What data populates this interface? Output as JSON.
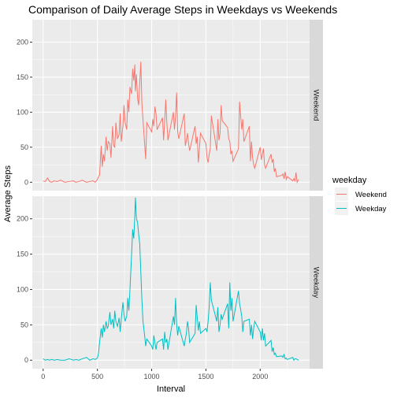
{
  "chart_data": {
    "type": "line",
    "title": "Comparison of Daily Average Steps in Weekdays vs Weekends",
    "xlabel": "Interval",
    "ylabel": "Average Steps",
    "xlim": [
      -100,
      2455
    ],
    "ylim": [
      -12,
      232
    ],
    "x_ticks": [
      0,
      500,
      1000,
      1500,
      2000
    ],
    "x_tick_labels": [
      "0",
      "500",
      "1000",
      "1500",
      "2000"
    ],
    "y_ticks": [
      0,
      50,
      100,
      150,
      200
    ],
    "y_tick_labels": [
      "0",
      "50",
      "100",
      "150",
      "200"
    ],
    "grid": true,
    "legend": {
      "title": "weekday",
      "placement": "right",
      "entries": [
        "Weekend",
        "Weekday"
      ]
    },
    "facets": [
      "Weekend",
      "Weekday"
    ],
    "series": [
      {
        "name": "Weekend",
        "color": "#F8766D",
        "x": [
          0,
          20,
          40,
          60,
          80,
          100,
          130,
          160,
          200,
          240,
          280,
          300,
          330,
          360,
          400,
          430,
          460,
          480,
          500,
          510,
          520,
          535,
          545,
          555,
          565,
          580,
          590,
          600,
          615,
          625,
          640,
          650,
          660,
          670,
          685,
          700,
          710,
          720,
          735,
          745,
          755,
          770,
          780,
          790,
          800,
          815,
          825,
          835,
          845,
          850,
          860,
          870,
          880,
          890,
          900,
          910,
          920,
          935,
          945,
          955,
          1000,
          1010,
          1020,
          1030,
          1040,
          1050,
          1100,
          1110,
          1120,
          1130,
          1140,
          1150,
          1200,
          1210,
          1220,
          1230,
          1240,
          1250,
          1300,
          1310,
          1320,
          1330,
          1340,
          1350,
          1400,
          1410,
          1420,
          1430,
          1440,
          1450,
          1500,
          1510,
          1520,
          1530,
          1540,
          1550,
          1600,
          1610,
          1620,
          1630,
          1640,
          1650,
          1700,
          1710,
          1720,
          1730,
          1740,
          1750,
          1800,
          1810,
          1820,
          1830,
          1840,
          1850,
          1900,
          1910,
          1920,
          1930,
          1940,
          1950,
          2000,
          2010,
          2020,
          2030,
          2040,
          2050,
          2100,
          2110,
          2120,
          2130,
          2140,
          2150,
          2200,
          2210,
          2220,
          2230,
          2240,
          2250,
          2300,
          2310,
          2320,
          2330,
          2340,
          2355
        ],
        "y": [
          2,
          1,
          6,
          1,
          0,
          2,
          1,
          3,
          0,
          1,
          2,
          0,
          1,
          3,
          0,
          1,
          2,
          0,
          4,
          8,
          10,
          52,
          22,
          40,
          30,
          65,
          45,
          58,
          55,
          35,
          80,
          52,
          50,
          85,
          62,
          68,
          98,
          58,
          80,
          110,
          86,
          75,
          118,
          100,
          136,
          126,
          162,
          145,
          168,
          130,
          154,
          120,
          110,
          142,
          172,
          112,
          90,
          55,
          33,
          85,
          72,
          90,
          80,
          108,
          98,
          75,
          92,
          60,
          88,
          118,
          85,
          60,
          100,
          75,
          94,
          128,
          72,
          62,
          98,
          52,
          60,
          70,
          55,
          45,
          80,
          55,
          65,
          28,
          48,
          70,
          55,
          35,
          28,
          40,
          48,
          95,
          45,
          90,
          60,
          70,
          110,
          88,
          78,
          62,
          58,
          40,
          45,
          30,
          48,
          115,
          95,
          75,
          90,
          58,
          80,
          30,
          58,
          35,
          25,
          20,
          50,
          32,
          40,
          48,
          25,
          20,
          40,
          28,
          33,
          15,
          20,
          8,
          10,
          12,
          5,
          15,
          4,
          8,
          2,
          5,
          2,
          14,
          0,
          4
        ],
        "note": ""
      },
      {
        "name": "Weekday",
        "color": "#00BFC4",
        "x": [
          0,
          20,
          40,
          60,
          80,
          100,
          130,
          160,
          200,
          240,
          280,
          300,
          330,
          360,
          400,
          430,
          460,
          480,
          500,
          510,
          520,
          535,
          545,
          555,
          565,
          580,
          590,
          600,
          615,
          625,
          640,
          650,
          660,
          670,
          685,
          700,
          710,
          720,
          735,
          745,
          755,
          770,
          780,
          790,
          800,
          815,
          825,
          835,
          845,
          850,
          860,
          870,
          880,
          890,
          900,
          910,
          920,
          935,
          945,
          955,
          1000,
          1010,
          1020,
          1030,
          1040,
          1050,
          1100,
          1110,
          1120,
          1130,
          1140,
          1150,
          1200,
          1210,
          1220,
          1230,
          1240,
          1250,
          1300,
          1310,
          1320,
          1330,
          1340,
          1350,
          1400,
          1410,
          1420,
          1430,
          1440,
          1450,
          1500,
          1510,
          1520,
          1530,
          1540,
          1550,
          1600,
          1610,
          1620,
          1630,
          1640,
          1650,
          1700,
          1710,
          1720,
          1730,
          1740,
          1750,
          1800,
          1810,
          1820,
          1830,
          1840,
          1850,
          1900,
          1910,
          1920,
          1930,
          1940,
          1950,
          2000,
          2010,
          2020,
          2030,
          2040,
          2050,
          2100,
          2110,
          2120,
          2130,
          2140,
          2150,
          2200,
          2210,
          2220,
          2230,
          2240,
          2250,
          2300,
          2310,
          2320,
          2330,
          2340,
          2355
        ],
        "y": [
          2,
          0,
          1,
          0,
          1,
          0,
          1,
          0,
          0,
          2,
          0,
          1,
          0,
          2,
          4,
          0,
          2,
          1,
          3,
          10,
          25,
          45,
          32,
          50,
          40,
          55,
          45,
          48,
          68,
          50,
          58,
          45,
          70,
          55,
          48,
          60,
          40,
          58,
          82,
          65,
          55,
          62,
          88,
          70,
          100,
          150,
          185,
          172,
          205,
          230,
          200,
          195,
          178,
          165,
          125,
          85,
          55,
          35,
          20,
          30,
          20,
          15,
          35,
          25,
          15,
          25,
          30,
          15,
          40,
          25,
          30,
          15,
          62,
          50,
          88,
          50,
          35,
          48,
          20,
          30,
          38,
          55,
          45,
          25,
          38,
          78,
          60,
          42,
          55,
          38,
          45,
          40,
          55,
          75,
          110,
          85,
          55,
          75,
          40,
          50,
          65,
          58,
          80,
          45,
          110,
          70,
          88,
          55,
          98,
          80,
          72,
          62,
          40,
          55,
          58,
          35,
          50,
          30,
          45,
          55,
          40,
          28,
          45,
          28,
          38,
          20,
          28,
          12,
          18,
          8,
          10,
          5,
          6,
          4,
          8,
          2,
          3,
          1,
          4,
          0,
          2,
          2,
          1,
          0
        ]
      }
    ]
  }
}
